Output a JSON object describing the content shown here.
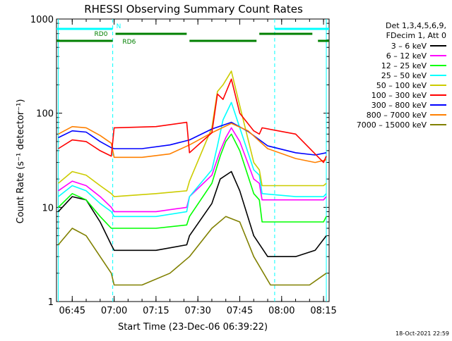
{
  "chart_data": {
    "type": "line",
    "title": "RHESSI Observing Summary Count Rates",
    "xlabel": "Start Time (23-Dec-06 06:39:22)",
    "ylabel": "Count Rate (s⁻¹ detector⁻¹)",
    "yscale": "log",
    "ylim": [
      1,
      1000
    ],
    "xlim": [
      "06:39:22",
      "08:17:00"
    ],
    "x_ticks": [
      "06:45",
      "07:00",
      "07:15",
      "07:30",
      "07:45",
      "08:00",
      "08:15"
    ],
    "y_ticks": [
      "1",
      "10",
      "100",
      "1000"
    ],
    "grid": false,
    "legend_position": "right",
    "legend_header": [
      "Det 1,3,4,5,6,9,",
      "FDecim 1, Att 0"
    ],
    "timestamp": "18-Oct-2021 22:59",
    "flags": [
      {
        "label": "N",
        "color": "#00ffff",
        "segments": [
          [
            "06:39:22",
            "06:59:30"
          ],
          [
            "07:57:30",
            "08:17:00"
          ]
        ]
      },
      {
        "label": "RD0",
        "color": "#008000",
        "segments": [
          [
            "07:00:30",
            "07:26:00"
          ],
          [
            "07:52:00",
            "08:11:00"
          ]
        ]
      },
      {
        "label": "RD6",
        "color": "#008000",
        "segments": [
          [
            "06:39:22",
            "06:59:30"
          ],
          [
            "07:27:00",
            "07:51:00"
          ],
          [
            "08:13:00",
            "08:17:00"
          ]
        ]
      }
    ],
    "night_markers": [
      "06:40:00",
      "06:59:30",
      "07:57:30",
      "08:16:00"
    ],
    "series": [
      {
        "name": "3 – 6 keV",
        "color": "#000000",
        "x": [
          "06:40",
          "06:45",
          "06:50",
          "06:55",
          "06:59",
          "07:00",
          "07:15",
          "07:26",
          "07:27",
          "07:35",
          "07:38",
          "07:42",
          "07:45",
          "07:50",
          "07:55",
          "08:05",
          "08:12",
          "08:16"
        ],
        "values": [
          9,
          13,
          12,
          7,
          4,
          3.5,
          3.5,
          4,
          5,
          11,
          20,
          24,
          15,
          5,
          3,
          3,
          3.5,
          5
        ]
      },
      {
        "name": "6 – 12 keV",
        "color": "#ff00ff",
        "x": [
          "06:40",
          "06:45",
          "06:50",
          "06:55",
          "06:59",
          "07:00",
          "07:15",
          "07:26",
          "07:27",
          "07:35",
          "07:38",
          "07:40",
          "07:42",
          "07:45",
          "07:50",
          "07:52",
          "07:53",
          "08:05",
          "08:15",
          "08:16"
        ],
        "values": [
          15,
          19,
          17,
          13,
          10,
          9,
          9,
          10,
          13,
          22,
          40,
          55,
          70,
          50,
          20,
          18,
          12,
          12,
          12,
          13
        ]
      },
      {
        "name": "12 – 25 keV",
        "color": "#00ff00",
        "x": [
          "06:40",
          "06:45",
          "06:50",
          "06:55",
          "06:59",
          "07:00",
          "07:15",
          "07:26",
          "07:27",
          "07:35",
          "07:38",
          "07:40",
          "07:42",
          "07:45",
          "07:50",
          "07:52",
          "07:53",
          "08:05",
          "08:15",
          "08:16"
        ],
        "values": [
          10,
          14,
          12,
          8,
          6,
          6,
          6,
          6.5,
          8,
          18,
          35,
          50,
          60,
          40,
          14,
          12,
          7,
          7,
          7,
          8
        ]
      },
      {
        "name": "25 – 50 keV",
        "color": "#00ffff",
        "x": [
          "06:40",
          "06:45",
          "06:50",
          "06:55",
          "06:59",
          "07:00",
          "07:15",
          "07:26",
          "07:27",
          "07:35",
          "07:37",
          "07:39",
          "07:42",
          "07:45",
          "07:50",
          "07:52",
          "07:53",
          "08:05",
          "08:15",
          "08:16"
        ],
        "values": [
          13,
          17,
          15,
          11,
          9,
          8,
          8,
          9,
          13,
          25,
          45,
          85,
          130,
          70,
          25,
          22,
          14,
          13,
          13,
          14
        ]
      },
      {
        "name": "50 – 100 keV",
        "color": "#cccc00",
        "x": [
          "06:40",
          "06:45",
          "06:50",
          "06:55",
          "06:59",
          "07:00",
          "07:15",
          "07:26",
          "07:27",
          "07:35",
          "07:37",
          "07:39",
          "07:42",
          "07:45",
          "07:50",
          "07:52",
          "07:53",
          "08:05",
          "08:15",
          "08:16"
        ],
        "values": [
          18,
          24,
          22,
          17,
          14,
          13,
          14,
          15,
          19,
          70,
          170,
          200,
          280,
          120,
          30,
          25,
          17,
          17,
          17,
          18
        ]
      },
      {
        "name": "100 – 300 keV",
        "color": "#ff0000",
        "x": [
          "06:40",
          "06:45",
          "06:50",
          "06:55",
          "06:59",
          "07:00",
          "07:15",
          "07:26",
          "07:27",
          "07:35",
          "07:37",
          "07:39",
          "07:42",
          "07:45",
          "07:50",
          "07:52",
          "07:53",
          "08:05",
          "08:15",
          "08:16"
        ],
        "values": [
          42,
          52,
          50,
          40,
          35,
          70,
          72,
          80,
          38,
          62,
          160,
          140,
          230,
          100,
          65,
          60,
          70,
          60,
          30,
          35
        ]
      },
      {
        "name": "300 – 800 keV",
        "color": "#0000ff",
        "x": [
          "06:40",
          "06:45",
          "06:50",
          "06:55",
          "06:59",
          "07:00",
          "07:10",
          "07:20",
          "07:27",
          "07:35",
          "07:42",
          "07:48",
          "07:55",
          "08:05",
          "08:12",
          "08:16"
        ],
        "values": [
          55,
          65,
          63,
          50,
          43,
          42,
          42,
          46,
          52,
          68,
          80,
          64,
          45,
          38,
          36,
          38
        ]
      },
      {
        "name": "800 – 7000 keV",
        "color": "#ff8000",
        "x": [
          "06:40",
          "06:45",
          "06:50",
          "06:55",
          "06:59",
          "07:00",
          "07:10",
          "07:20",
          "07:27",
          "07:35",
          "07:42",
          "07:48",
          "07:55",
          "08:05",
          "08:12",
          "08:16"
        ],
        "values": [
          60,
          72,
          70,
          58,
          48,
          34,
          34,
          37,
          46,
          62,
          78,
          65,
          42,
          33,
          30,
          32
        ]
      },
      {
        "name": "7000 – 15000 keV",
        "color": "#808000",
        "x": [
          "06:40",
          "06:45",
          "06:50",
          "06:55",
          "06:59",
          "07:00",
          "07:10",
          "07:20",
          "07:27",
          "07:35",
          "07:40",
          "07:45",
          "07:50",
          "07:56",
          "08:00",
          "08:10",
          "08:16"
        ],
        "values": [
          4,
          6,
          5,
          3,
          2,
          1.5,
          1.5,
          2,
          3,
          6,
          8,
          7,
          3,
          1.5,
          1.5,
          1.5,
          2
        ]
      }
    ]
  }
}
